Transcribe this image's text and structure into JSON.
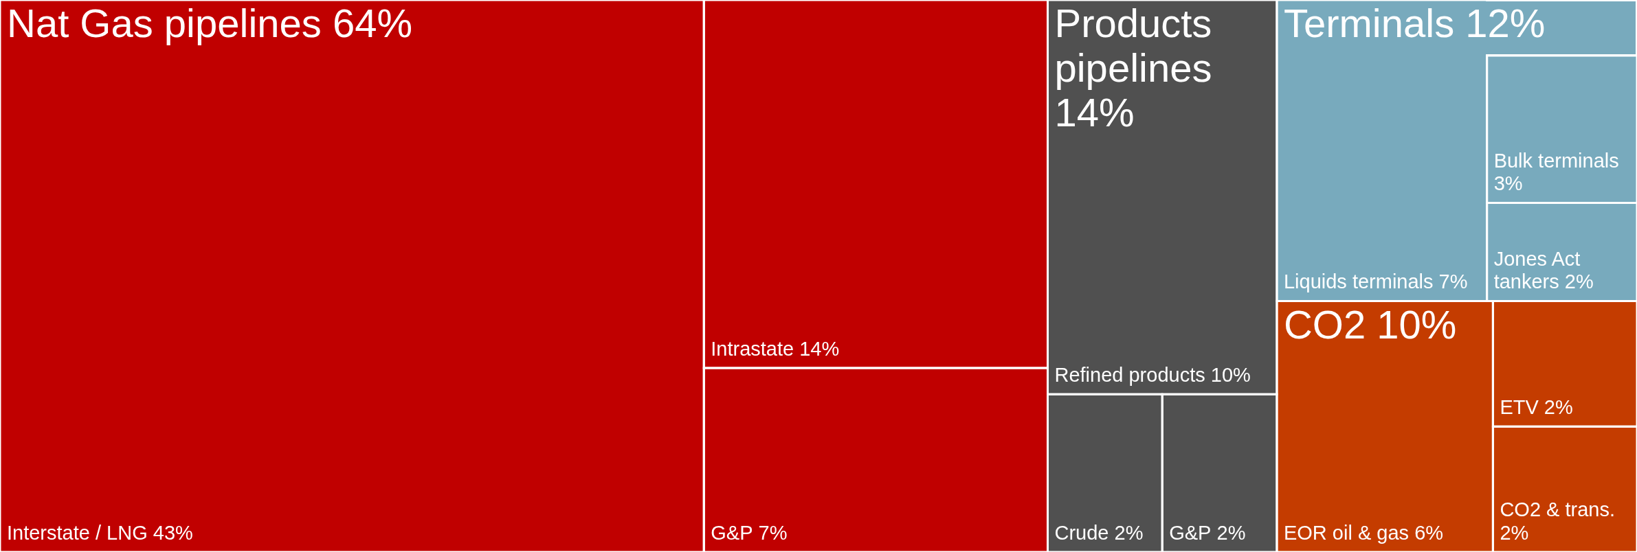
{
  "chart_data": {
    "type": "other",
    "categories": [
      "Interstate / LNG",
      "Intrastate",
      "G&P",
      "Refined products",
      "Crude",
      "G&P",
      "Liquids terminals",
      "Bulk terminals",
      "Jones Act tankers",
      "EOR oil & gas",
      "ETV",
      "CO2 & trans."
    ],
    "values": [
      43,
      14,
      7,
      10,
      2,
      2,
      7,
      3,
      2,
      6,
      2,
      2
    ],
    "value_labels": [
      "43%",
      "14%",
      "7%",
      "10%",
      "2%",
      "2%",
      "7%",
      "3%",
      "2%",
      "6%",
      "2%",
      "2%"
    ],
    "colors": [
      "#c00000",
      "#c00000",
      "#c00000",
      "#505050",
      "#505050",
      "#505050",
      "#78aabd",
      "#78aabd",
      "#78aabd",
      "#c43c00",
      "#c43c00",
      "#c43c00"
    ],
    "annotations": [
      "Nat Gas pipelines 64%",
      "Products pipelines 14%",
      "Terminals 12%",
      "CO2 10%"
    ]
  }
}
